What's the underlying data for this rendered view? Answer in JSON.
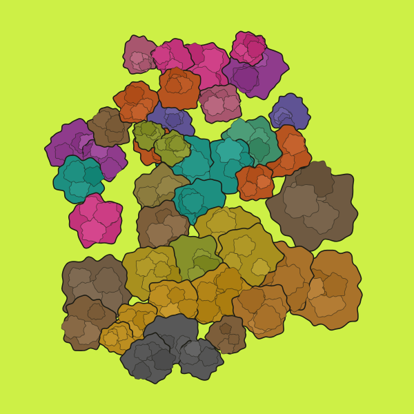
{
  "image": {
    "background_color": "#cdf046",
    "subject": "molecular-complex-illustration",
    "outline_color": "#1c1c14",
    "palette": {
      "magenta": "#c2337a",
      "plum": "#8f3b8c",
      "mauve": "#a8566e",
      "rust": "#b7541f",
      "slate-violet": "#5f5394",
      "teal": "#1d8f80",
      "sea-green": "#3f8f6a",
      "olive-green": "#86912a",
      "khaki": "#8a7a3c",
      "brown": "#7d5e3a",
      "bronze": "#a9722a",
      "ochre": "#b88a1c",
      "mustard": "#a8901e",
      "umber": "#6f5a42",
      "graphite": "#585858"
    }
  }
}
